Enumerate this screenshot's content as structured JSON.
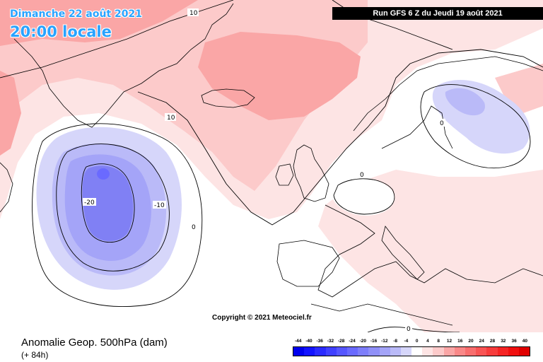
{
  "header": {
    "date_line": "Dimanche 22 août 2021",
    "time_line": "20:00 locale",
    "run_info": "Run GFS 6 Z du Jeudi 19 août 2021"
  },
  "watermark": "Copyright © 2021 Meteociel.fr",
  "legend": {
    "title": "Anomalie Geop. 500hPa (dam)",
    "forecast_step": "(+ 84h)",
    "scale": [
      {
        "label": "-44",
        "color": "#0000ee"
      },
      {
        "label": "-40",
        "color": "#1313ff"
      },
      {
        "label": "-36",
        "color": "#2a2aff"
      },
      {
        "label": "-32",
        "color": "#4040ff"
      },
      {
        "label": "-28",
        "color": "#5656ff"
      },
      {
        "label": "-24",
        "color": "#6a6aff"
      },
      {
        "label": "-20",
        "color": "#7e7efa"
      },
      {
        "label": "-16",
        "color": "#9090f8"
      },
      {
        "label": "-12",
        "color": "#a4a4f8"
      },
      {
        "label": "-8",
        "color": "#babaf8"
      },
      {
        "label": "-4",
        "color": "#d6d6fa"
      },
      {
        "label": "0",
        "color": "#ffffff"
      },
      {
        "label": "4",
        "color": "#fde4e4"
      },
      {
        "label": "8",
        "color": "#fccaca"
      },
      {
        "label": "12",
        "color": "#faa6a6"
      },
      {
        "label": "16",
        "color": "#f98888"
      },
      {
        "label": "20",
        "color": "#f86e6e"
      },
      {
        "label": "24",
        "color": "#f85454"
      },
      {
        "label": "28",
        "color": "#f73c3c"
      },
      {
        "label": "32",
        "color": "#f52424"
      },
      {
        "label": "36",
        "color": "#f01010"
      },
      {
        "label": "40",
        "color": "#e00000"
      }
    ]
  },
  "map": {
    "contour_labels": [
      "10",
      "10",
      "-20",
      "-10",
      "0",
      "0",
      "0",
      "0"
    ],
    "colors": {
      "ocean_base": "#ffffff",
      "positive_light": "#fde4e4",
      "positive_mid": "#fccaca",
      "positive_strong": "#faa6a6",
      "negative_light": "#d6d6fa",
      "negative_mid": "#babaf8",
      "negative_strong": "#a4a4f8",
      "negative_deep": "#8080f4",
      "coastline": "#000000"
    }
  }
}
